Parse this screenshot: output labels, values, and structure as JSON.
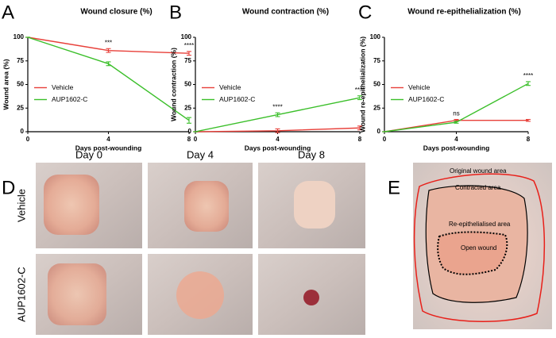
{
  "chart_data": [
    {
      "type": "line",
      "panel_label": "A",
      "title": "Wound closure (%)",
      "xlabel": "Days post-wounding",
      "ylabel": "Wound area (%)",
      "x": [
        0,
        4,
        8
      ],
      "xlim": [
        0,
        8
      ],
      "xticks": [
        0,
        4,
        8
      ],
      "ylim": [
        0,
        100
      ],
      "yticks": [
        0,
        25,
        50,
        75,
        100
      ],
      "legend": "middle-left",
      "series": [
        {
          "name": "Vehicle",
          "color": "#e8403a",
          "values": [
            100,
            86,
            83
          ],
          "errors": [
            0,
            2,
            2
          ]
        },
        {
          "name": "AUP1602-C",
          "color": "#3bbf2a",
          "values": [
            100,
            72,
            12
          ],
          "errors": [
            0,
            2,
            3
          ]
        }
      ],
      "annotations": [
        {
          "text": "***",
          "x": 4
        },
        {
          "text": "****",
          "x": 8
        }
      ]
    },
    {
      "type": "line",
      "panel_label": "B",
      "title": "Wound contraction (%)",
      "xlabel": "Days post-wounding",
      "ylabel": "Wound contraction (%)",
      "x": [
        0,
        4,
        8
      ],
      "xlim": [
        0,
        8
      ],
      "xticks": [
        0,
        4,
        8
      ],
      "ylim": [
        0,
        100
      ],
      "yticks": [
        0,
        25,
        50,
        75,
        100
      ],
      "legend": "middle-left",
      "series": [
        {
          "name": "Vehicle",
          "color": "#e8403a",
          "values": [
            0,
            1,
            4
          ],
          "errors": [
            0,
            2,
            2
          ]
        },
        {
          "name": "AUP1602-C",
          "color": "#3bbf2a",
          "values": [
            0,
            18,
            36
          ],
          "errors": [
            0,
            2,
            2
          ]
        }
      ],
      "annotations": [
        {
          "text": "****",
          "x": 4
        },
        {
          "text": "****",
          "x": 8
        }
      ]
    },
    {
      "type": "line",
      "panel_label": "C",
      "title": "Wound re-epithelialization (%)",
      "xlabel": "Days post-wounding",
      "ylabel": "Wound re-epithelialization (%)",
      "x": [
        0,
        4,
        8
      ],
      "xlim": [
        0,
        8
      ],
      "xticks": [
        0,
        4,
        8
      ],
      "ylim": [
        0,
        100
      ],
      "yticks": [
        0,
        25,
        50,
        75,
        100
      ],
      "legend": "middle-left",
      "series": [
        {
          "name": "Vehicle",
          "color": "#e8403a",
          "values": [
            0,
            12,
            12
          ],
          "errors": [
            0,
            1,
            1
          ]
        },
        {
          "name": "AUP1602-C",
          "color": "#3bbf2a",
          "values": [
            0,
            10,
            51
          ],
          "errors": [
            0,
            1,
            2
          ]
        }
      ],
      "annotations": [
        {
          "text": "ns",
          "x": 4
        },
        {
          "text": "****",
          "x": 8
        }
      ]
    }
  ],
  "photo_panel": {
    "panel_label": "D",
    "columns": [
      "Day 0",
      "Day 4",
      "Day 8"
    ],
    "rows": [
      "Vehicle",
      "AUP1602-C"
    ]
  },
  "schematic": {
    "panel_label": "E",
    "labels": [
      "Original wound area",
      "Contracted area",
      "Re-epithelialised area",
      "Open wound"
    ]
  }
}
